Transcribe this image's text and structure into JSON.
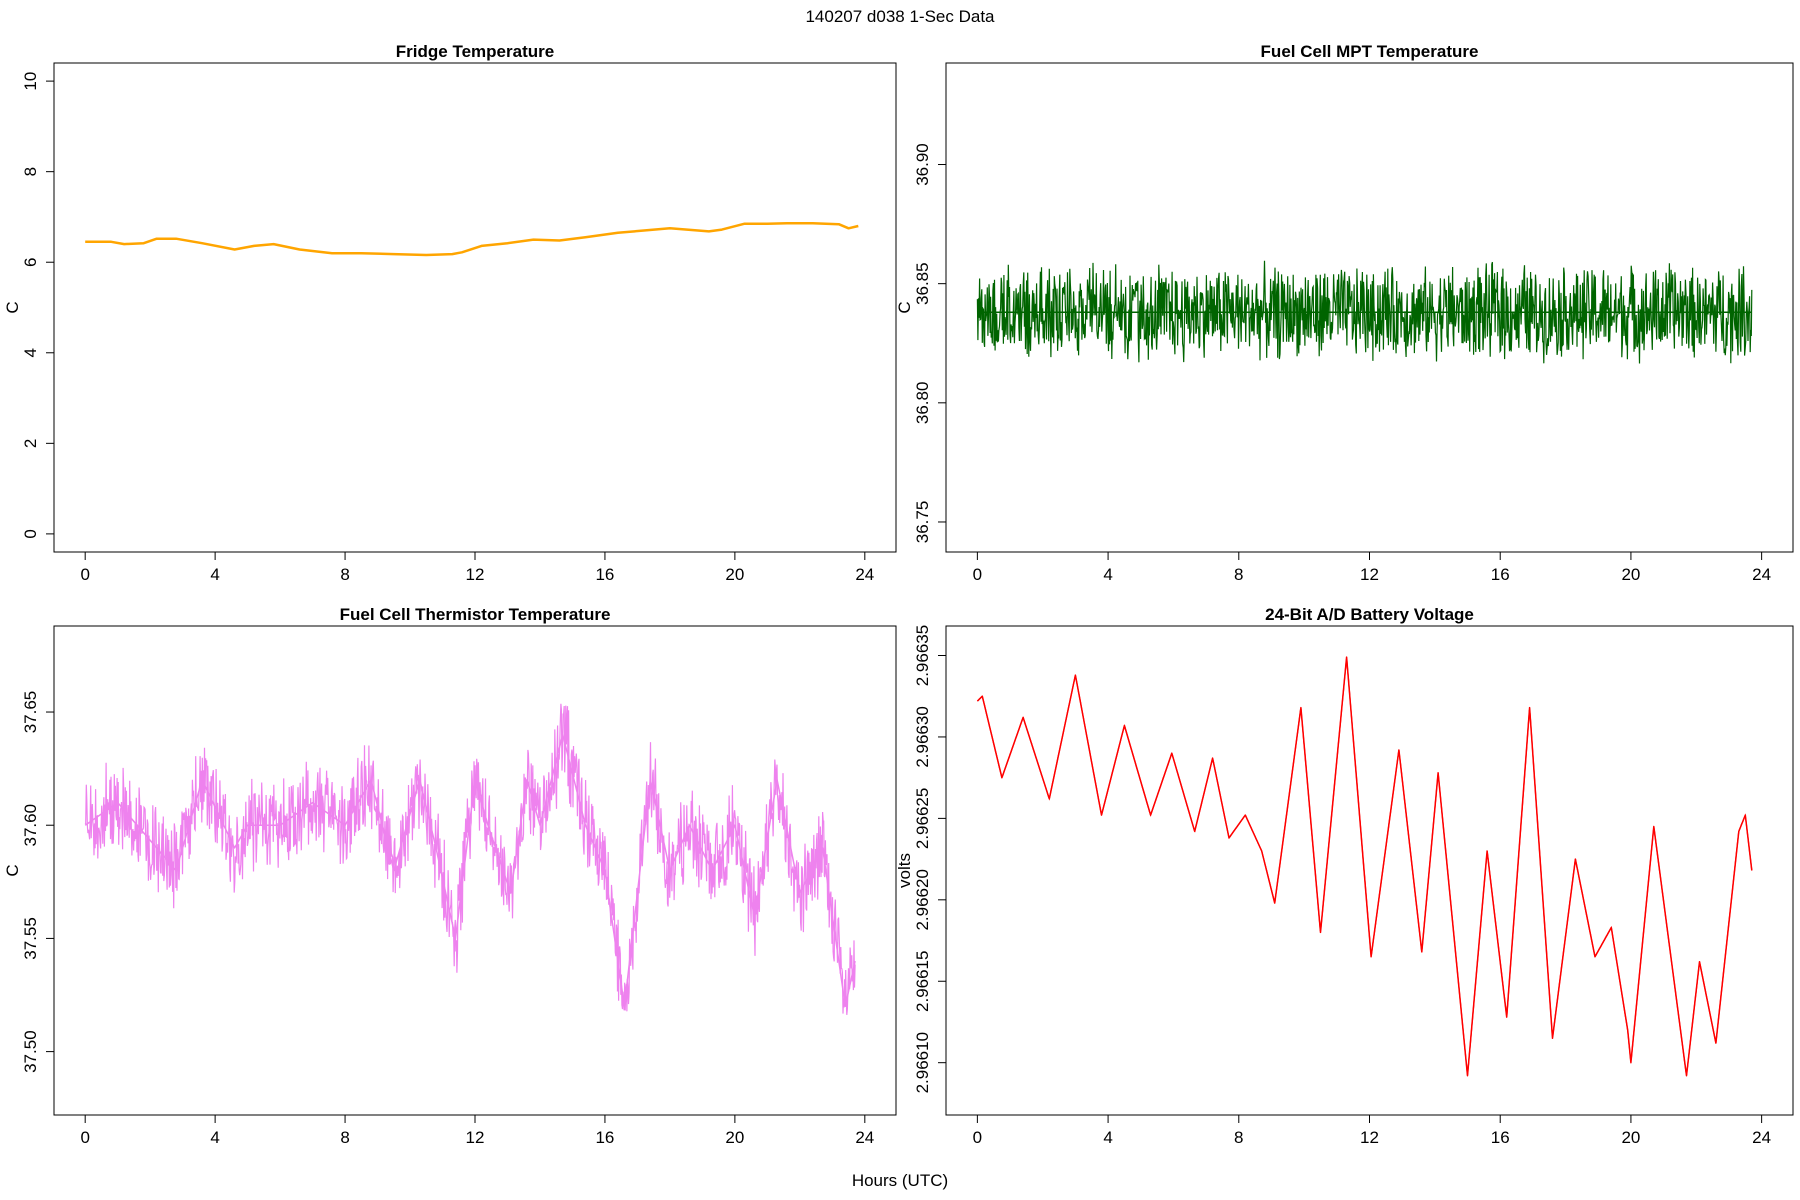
{
  "figure": {
    "suptitle": "140207   d038   1-Sec Data",
    "xlabel": "Hours (UTC)",
    "background": "#ffffff"
  },
  "chart_data": [
    {
      "type": "line",
      "title": "Fridge Temperature",
      "ylabel": "C",
      "xlabel": "",
      "color": "#ffa500",
      "noise": 0,
      "xlim": [
        0,
        24
      ],
      "ylim": [
        0,
        10
      ],
      "xticks": [
        0,
        4,
        8,
        12,
        16,
        20,
        24
      ],
      "yticks": [
        0,
        2,
        4,
        6,
        8,
        10
      ],
      "ytick_labels": [
        "0",
        "2",
        "4",
        "6",
        "8",
        "10"
      ],
      "grid": false,
      "x": [
        0,
        0.8,
        1.2,
        1.8,
        2.2,
        2.8,
        3.6,
        4.6,
        5.2,
        5.8,
        6.6,
        7.6,
        8.5,
        9.5,
        10.5,
        11.3,
        11.6,
        12.2,
        13.0,
        13.8,
        14.6,
        15.4,
        16.4,
        17.2,
        18.0,
        19.2,
        19.6,
        20.3,
        21.0,
        21.6,
        22.4,
        23.2,
        23.5,
        23.8
      ],
      "y": [
        6.45,
        6.45,
        6.4,
        6.42,
        6.52,
        6.52,
        6.42,
        6.28,
        6.36,
        6.4,
        6.28,
        6.2,
        6.2,
        6.18,
        6.16,
        6.18,
        6.22,
        6.36,
        6.42,
        6.5,
        6.48,
        6.55,
        6.65,
        6.7,
        6.75,
        6.68,
        6.72,
        6.85,
        6.85,
        6.86,
        6.86,
        6.84,
        6.75,
        6.8
      ]
    },
    {
      "type": "line",
      "title": "Fuel Cell MPT Temperature",
      "ylabel": "C",
      "xlabel": "",
      "color": "#006400",
      "noise": 0.022,
      "xlim": [
        0,
        24
      ],
      "ylim": [
        36.745,
        36.935
      ],
      "xticks": [
        0,
        4,
        8,
        12,
        16,
        20,
        24
      ],
      "yticks": [
        36.75,
        36.8,
        36.85,
        36.9
      ],
      "ytick_labels": [
        "36.75",
        "36.80",
        "36.85",
        "36.90"
      ],
      "grid": false,
      "x": [
        0,
        4,
        8,
        12,
        16,
        20,
        23.7
      ],
      "y": [
        36.838,
        36.838,
        36.838,
        36.838,
        36.838,
        36.838,
        36.838
      ]
    },
    {
      "type": "line",
      "title": "Fuel Cell Thermistor Temperature",
      "ylabel": "C",
      "xlabel": "",
      "color": "#ee82ee",
      "noise": 0.022,
      "xlim": [
        0,
        24
      ],
      "ylim": [
        37.48,
        37.68
      ],
      "xticks": [
        0,
        4,
        8,
        12,
        16,
        20,
        24
      ],
      "yticks": [
        37.5,
        37.55,
        37.6,
        37.65
      ],
      "ytick_labels": [
        "37.50",
        "37.55",
        "37.60",
        "37.65"
      ],
      "grid": false,
      "x": [
        0,
        1.0,
        2.8,
        3.6,
        4.6,
        5.0,
        6.0,
        7.0,
        8.0,
        8.8,
        9.5,
        10.3,
        10.8,
        11.4,
        12.0,
        12.4,
        13.1,
        13.6,
        14.0,
        14.7,
        15.4,
        16.0,
        16.6,
        17.4,
        18.0,
        18.6,
        19.3,
        20.0,
        20.6,
        21.3,
        22.0,
        22.7,
        23.4,
        23.7
      ],
      "y": [
        37.6,
        37.61,
        37.58,
        37.62,
        37.59,
        37.6,
        37.6,
        37.61,
        37.6,
        37.62,
        37.58,
        37.62,
        37.59,
        37.55,
        37.62,
        37.6,
        37.57,
        37.62,
        37.6,
        37.64,
        37.6,
        37.58,
        37.52,
        37.62,
        37.58,
        37.6,
        37.58,
        37.6,
        37.56,
        37.62,
        37.57,
        37.59,
        37.52,
        37.54
      ]
    },
    {
      "type": "line",
      "title": "24-Bit A/D Battery Voltage",
      "ylabel": "volts",
      "xlabel": "",
      "color": "#ff0000",
      "noise": 2e-07,
      "xlim": [
        0,
        24
      ],
      "ylim": [
        2.966079,
        2.966357
      ],
      "xticks": [
        0,
        4,
        8,
        12,
        16,
        20,
        24
      ],
      "yticks": [
        2.9661,
        2.96615,
        2.9662,
        2.96625,
        2.9663,
        2.96635
      ],
      "ytick_labels": [
        "2.96610",
        "2.96615",
        "2.96620",
        "2.96625",
        "2.96630",
        "2.96635"
      ],
      "grid": false,
      "x": [
        0,
        0.15,
        0.75,
        1.4,
        2.2,
        3.0,
        3.8,
        4.5,
        5.3,
        5.95,
        6.65,
        7.2,
        7.7,
        8.2,
        8.7,
        9.1,
        9.9,
        10.5,
        11.3,
        12.05,
        12.9,
        13.6,
        14.1,
        15.0,
        15.6,
        16.2,
        16.9,
        17.6,
        18.3,
        18.9,
        19.4,
        19.9,
        20.0,
        20.7,
        21.7,
        22.1,
        22.6,
        23.3,
        23.5,
        23.7
      ],
      "y": [
        2.966322,
        2.966325,
        2.966275,
        2.966312,
        2.966262,
        2.966338,
        2.966252,
        2.966307,
        2.966252,
        2.96629,
        2.966242,
        2.966287,
        2.966238,
        2.966252,
        2.96623,
        2.966198,
        2.966318,
        2.96618,
        2.966349,
        2.966165,
        2.966292,
        2.966168,
        2.966278,
        2.966092,
        2.96623,
        2.966128,
        2.966318,
        2.966115,
        2.966225,
        2.966165,
        2.966183,
        2.96612,
        2.9661,
        2.966245,
        2.966092,
        2.966162,
        2.966112,
        2.966242,
        2.966252,
        2.966218
      ]
    }
  ]
}
